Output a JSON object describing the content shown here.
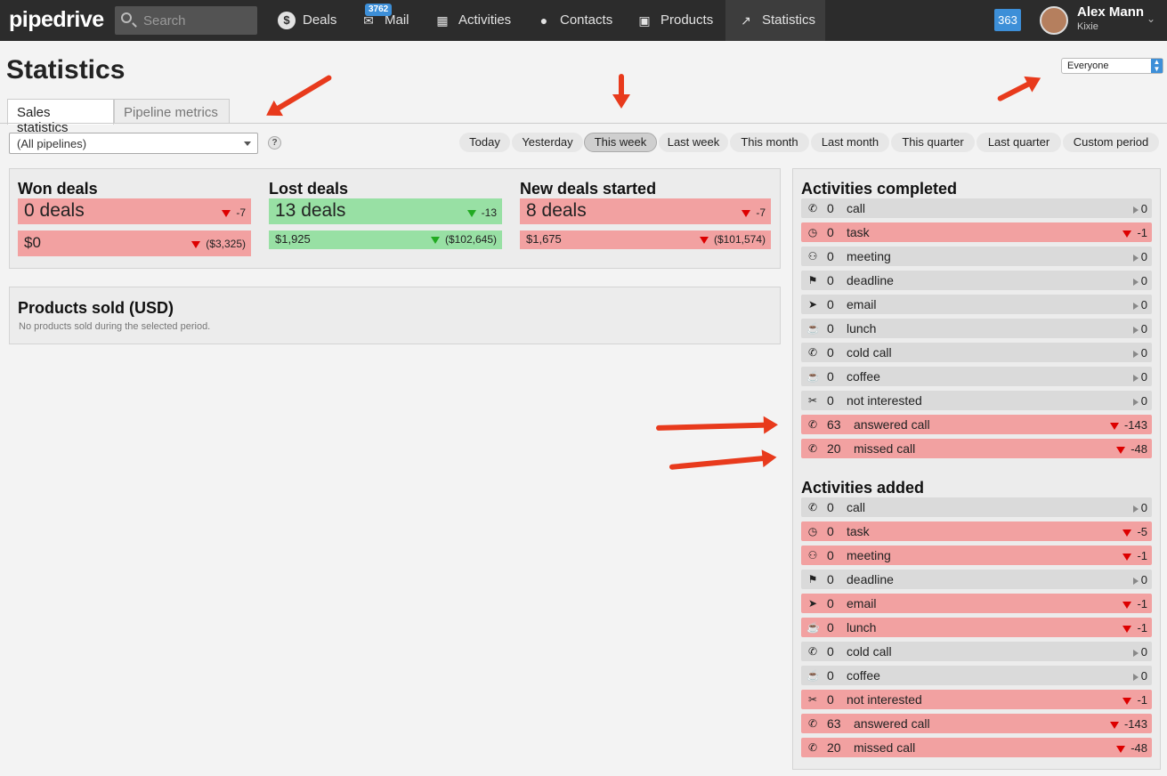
{
  "topbar": {
    "logo": "pipedrive",
    "search_placeholder": "Search",
    "nav": [
      {
        "label": "Deals",
        "icon": "dollar-circle-icon"
      },
      {
        "label": "Mail",
        "icon": "envelope-icon",
        "badge": "3762"
      },
      {
        "label": "Activities",
        "icon": "calendar-icon"
      },
      {
        "label": "Contacts",
        "icon": "person-icon"
      },
      {
        "label": "Products",
        "icon": "box-icon"
      },
      {
        "label": "Statistics",
        "icon": "trend-line-icon"
      }
    ],
    "notifications": "363",
    "user_name": "Alex Mann",
    "user_company": "Kixie"
  },
  "page": {
    "title": "Statistics",
    "user_filter": "Everyone",
    "tabs": [
      "Sales statistics",
      "Pipeline metrics"
    ],
    "active_tab": "Sales statistics",
    "pipeline_select": "(All pipelines)",
    "help": "?",
    "periods": [
      "Today",
      "Yesterday",
      "This week",
      "Last week",
      "This month",
      "Last month",
      "This quarter",
      "Last quarter",
      "Custom period"
    ],
    "selected_period": "This week"
  },
  "deals": {
    "won": {
      "title": "Won deals",
      "count": "0 deals",
      "count_change": "-7",
      "value": "$0",
      "value_change": "($3,325)"
    },
    "lost": {
      "title": "Lost deals",
      "count": "13 deals",
      "count_change": "-13",
      "value": "$1,925",
      "value_change": "($102,645)"
    },
    "new": {
      "title": "New deals started",
      "count": "8 deals",
      "count_change": "-7",
      "value": "$1,675",
      "value_change": "($101,574)"
    }
  },
  "products": {
    "title": "Products sold (USD)",
    "empty": "No products sold during the selected period."
  },
  "activities_completed": {
    "title": "Activities completed",
    "rows": [
      {
        "icon": "phone-icon",
        "count": "0",
        "label": "call",
        "change": "0",
        "trend": "flat"
      },
      {
        "icon": "clock-icon",
        "count": "0",
        "label": "task",
        "change": "-1",
        "trend": "down"
      },
      {
        "icon": "people-icon",
        "count": "0",
        "label": "meeting",
        "change": "0",
        "trend": "flat"
      },
      {
        "icon": "flag-icon",
        "count": "0",
        "label": "deadline",
        "change": "0",
        "trend": "flat"
      },
      {
        "icon": "paper-plane-icon",
        "count": "0",
        "label": "email",
        "change": "0",
        "trend": "flat"
      },
      {
        "icon": "cup-icon",
        "count": "0",
        "label": "lunch",
        "change": "0",
        "trend": "flat"
      },
      {
        "icon": "phone-icon",
        "count": "0",
        "label": "cold call",
        "change": "0",
        "trend": "flat"
      },
      {
        "icon": "cup-icon",
        "count": "0",
        "label": "coffee",
        "change": "0",
        "trend": "flat"
      },
      {
        "icon": "scissors-icon",
        "count": "0",
        "label": "not interested",
        "change": "0",
        "trend": "flat"
      },
      {
        "icon": "phone-icon",
        "count": "63",
        "label": "answered call",
        "change": "-143",
        "trend": "down"
      },
      {
        "icon": "phone-icon",
        "count": "20",
        "label": "missed call",
        "change": "-48",
        "trend": "down"
      }
    ]
  },
  "activities_added": {
    "title": "Activities added",
    "rows": [
      {
        "icon": "phone-icon",
        "count": "0",
        "label": "call",
        "change": "0",
        "trend": "flat"
      },
      {
        "icon": "clock-icon",
        "count": "0",
        "label": "task",
        "change": "-5",
        "trend": "down"
      },
      {
        "icon": "people-icon",
        "count": "0",
        "label": "meeting",
        "change": "-1",
        "trend": "down"
      },
      {
        "icon": "flag-icon",
        "count": "0",
        "label": "deadline",
        "change": "0",
        "trend": "flat"
      },
      {
        "icon": "paper-plane-icon",
        "count": "0",
        "label": "email",
        "change": "-1",
        "trend": "down"
      },
      {
        "icon": "cup-icon",
        "count": "0",
        "label": "lunch",
        "change": "-1",
        "trend": "down"
      },
      {
        "icon": "phone-icon",
        "count": "0",
        "label": "cold call",
        "change": "0",
        "trend": "flat"
      },
      {
        "icon": "cup-icon",
        "count": "0",
        "label": "coffee",
        "change": "0",
        "trend": "flat"
      },
      {
        "icon": "scissors-icon",
        "count": "0",
        "label": "not interested",
        "change": "-1",
        "trend": "down"
      },
      {
        "icon": "phone-icon",
        "count": "63",
        "label": "answered call",
        "change": "-143",
        "trend": "down"
      },
      {
        "icon": "phone-icon",
        "count": "20",
        "label": "missed call",
        "change": "-48",
        "trend": "down"
      }
    ]
  },
  "colors": {
    "topbar": "#2c2c2c",
    "accent": "#3d8fd8",
    "negative": "#f2a1a1",
    "positive": "#98e0a4",
    "neutral": "#dadada",
    "annotation_arrow": "#e83a1c"
  }
}
